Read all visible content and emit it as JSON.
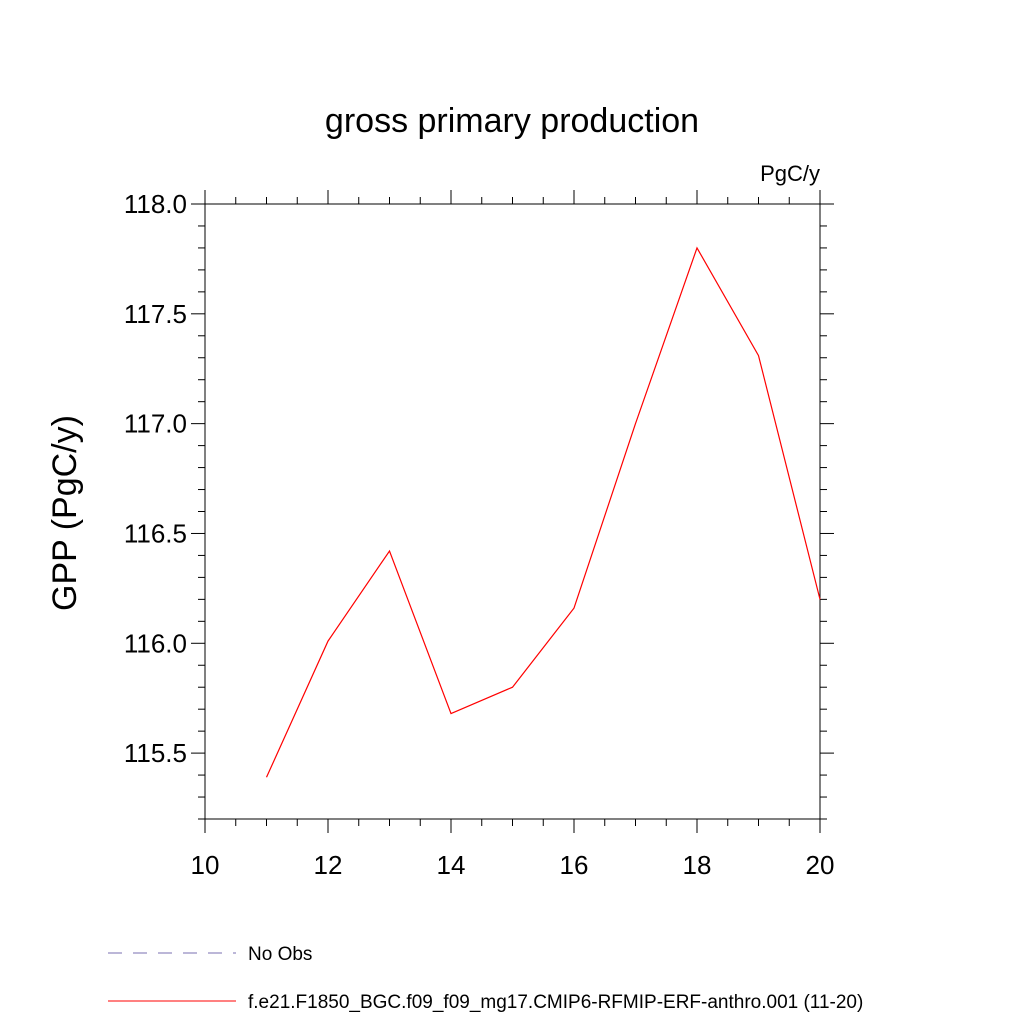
{
  "chart_data": {
    "type": "line",
    "title": "gross primary production",
    "units_label": "PgC/y",
    "ylabel": "GPP  (PgC/y)",
    "xlabel": "",
    "xlim": [
      10,
      20
    ],
    "ylim": [
      115.2,
      118.0
    ],
    "x_ticks": [
      10,
      12,
      14,
      16,
      18,
      20
    ],
    "y_ticks": [
      115.5,
      116.0,
      116.5,
      117.0,
      117.5,
      118.0
    ],
    "x_tick_labels": [
      "10",
      "12",
      "14",
      "16",
      "18",
      "20"
    ],
    "y_tick_labels": [
      "115.5",
      "116.0",
      "116.5",
      "117.0",
      "117.5",
      "118.0"
    ],
    "grid": false,
    "legend_position": "bottom",
    "series": [
      {
        "name": "f.e21.F1850_BGC.f09_f09_mg17.CMIP6-RFMIP-ERF-anthro.001 (11-20)",
        "color": "#ff0000",
        "dash": "solid",
        "x": [
          11,
          12,
          13,
          14,
          15,
          16,
          17,
          18,
          19,
          20
        ],
        "y": [
          115.39,
          116.01,
          116.42,
          115.68,
          115.8,
          116.16,
          117.0,
          117.8,
          117.31,
          116.2
        ]
      }
    ],
    "legend": [
      {
        "label": "No Obs",
        "color": "#7a6fb0",
        "dash": "dashed"
      },
      {
        "label": "f.e21.F1850_BGC.f09_f09_mg17.CMIP6-RFMIP-ERF-anthro.001 (11-20)",
        "color": "#ff0000",
        "dash": "solid"
      }
    ]
  }
}
